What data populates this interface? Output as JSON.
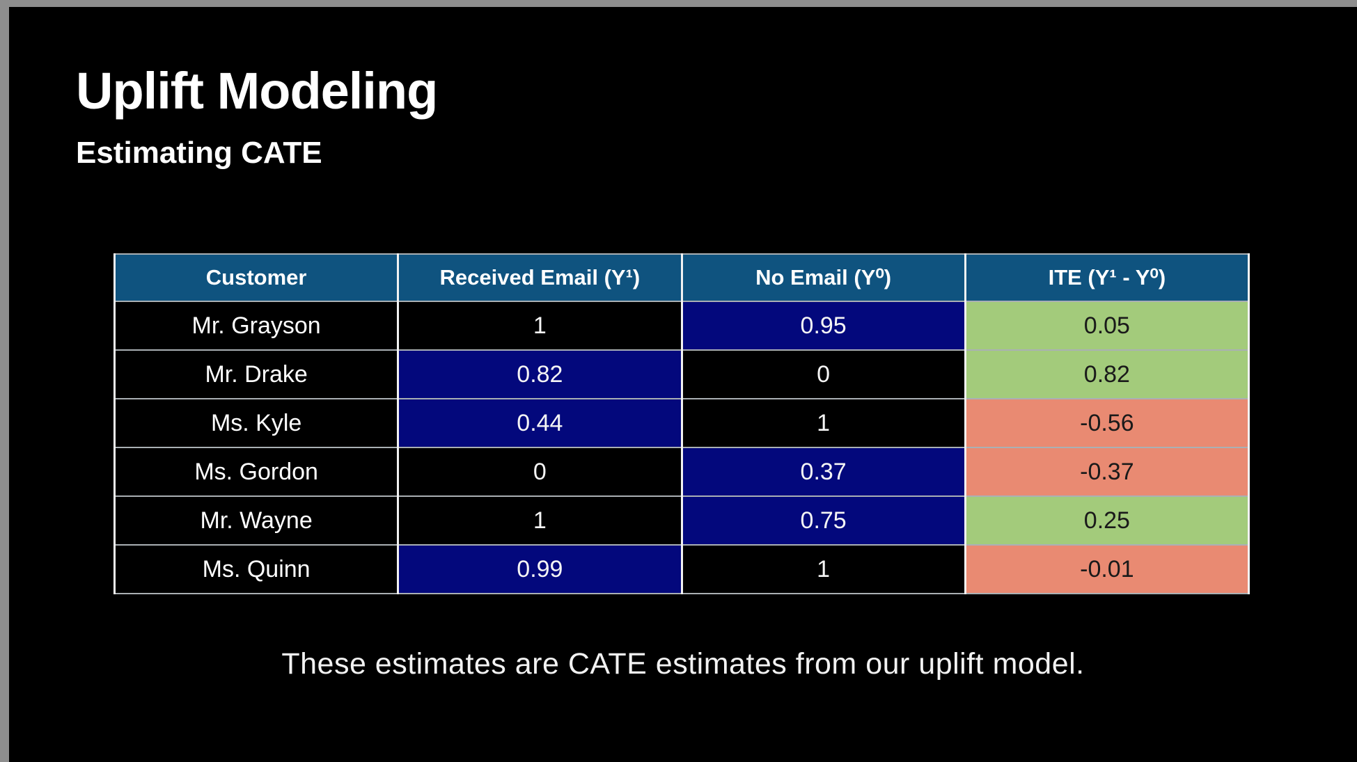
{
  "window": {
    "frame_color": "#8e8e8e"
  },
  "slide": {
    "background": "#000000",
    "title": "Uplift Modeling",
    "subtitle": "Estimating CATE",
    "caption": "These estimates are CATE estimates from our uplift model."
  },
  "table": {
    "columns": [
      "Customer",
      "Received Email (Y¹)",
      "No Email (Y⁰)",
      "ITE (Y¹ - Y⁰)"
    ],
    "rows": [
      {
        "customer": "Mr. Grayson",
        "received_email": "1",
        "received_email_estimated": false,
        "no_email": "0.95",
        "no_email_estimated": true,
        "ite": "0.05",
        "ite_positive": true
      },
      {
        "customer": "Mr. Drake",
        "received_email": "0.82",
        "received_email_estimated": true,
        "no_email": "0",
        "no_email_estimated": false,
        "ite": "0.82",
        "ite_positive": true
      },
      {
        "customer": "Ms. Kyle",
        "received_email": "0.44",
        "received_email_estimated": true,
        "no_email": "1",
        "no_email_estimated": false,
        "ite": "-0.56",
        "ite_positive": false
      },
      {
        "customer": "Ms. Gordon",
        "received_email": "0",
        "received_email_estimated": false,
        "no_email": "0.37",
        "no_email_estimated": true,
        "ite": "-0.37",
        "ite_positive": false
      },
      {
        "customer": "Mr. Wayne",
        "received_email": "1",
        "received_email_estimated": false,
        "no_email": "0.75",
        "no_email_estimated": true,
        "ite": "0.25",
        "ite_positive": true
      },
      {
        "customer": "Ms. Quinn",
        "received_email": "0.99",
        "received_email_estimated": true,
        "no_email": "1",
        "no_email_estimated": false,
        "ite": "-0.01",
        "ite_positive": false
      }
    ],
    "colors": {
      "header_bg": "#0f537f",
      "estimate_bg": "#03087c",
      "observed_bg": "#000000",
      "positive_bg": "#a3cb7b",
      "negative_bg": "#e98a72",
      "ite_text": "#1a1a1a",
      "header_text": "#ffffff",
      "cell_text": "#f5f5f5"
    }
  },
  "chart_data": {
    "type": "table",
    "title": "Uplift Modeling — Estimating CATE",
    "columns": [
      "Customer",
      "Received Email (Y¹)",
      "No Email (Y⁰)",
      "ITE (Y¹ - Y⁰)"
    ],
    "rows": [
      [
        "Mr. Grayson",
        1,
        0.95,
        0.05
      ],
      [
        "Mr. Drake",
        0.82,
        0,
        0.82
      ],
      [
        "Ms. Kyle",
        0.44,
        1,
        -0.56
      ],
      [
        "Ms. Gordon",
        0,
        0.37,
        -0.37
      ],
      [
        "Mr. Wayne",
        1,
        0.75,
        0.25
      ],
      [
        "Ms. Quinn",
        0.99,
        1,
        -0.01
      ]
    ]
  }
}
